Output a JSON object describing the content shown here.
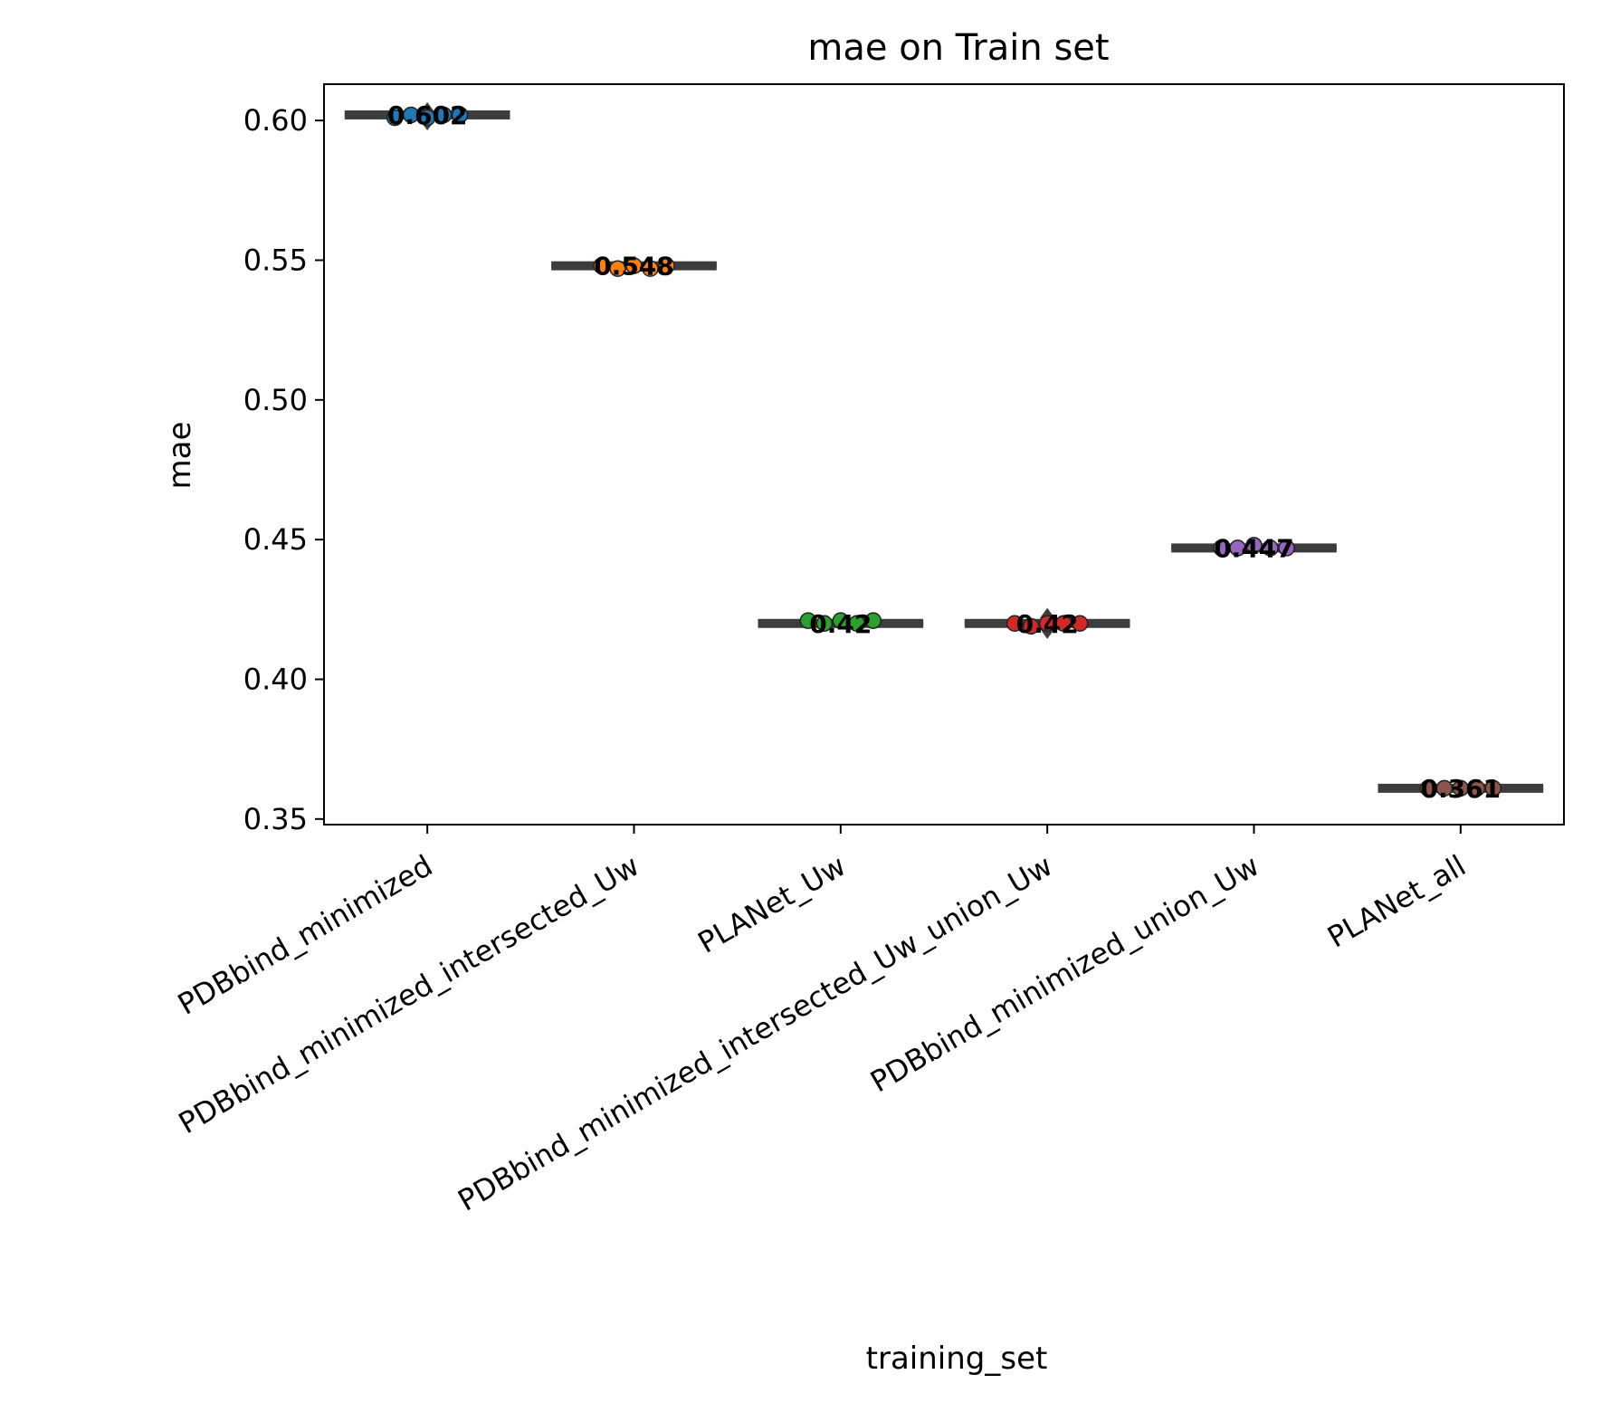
{
  "chart_data": {
    "type": "box",
    "title": "mae on Train set",
    "xlabel": "training_set",
    "ylabel": "mae",
    "ylim": [
      0.348,
      0.613
    ],
    "yticks": [
      0.35,
      0.4,
      0.45,
      0.5,
      0.55,
      0.6
    ],
    "ytick_labels": [
      "0.35",
      "0.40",
      "0.45",
      "0.50",
      "0.55",
      "0.60"
    ],
    "categories": [
      "PDBbind_minimized",
      "PDBbind_minimized_intersected_Uw",
      "PLANet_Uw",
      "PDBbind_minimized_intersected_Uw_union_Uw",
      "PDBbind_minimized_union_Uw",
      "PLANet_all"
    ],
    "medians": [
      0.602,
      0.548,
      0.42,
      0.42,
      0.447,
      0.361
    ],
    "median_labels": [
      "0.602",
      "0.548",
      "0.42",
      "0.42",
      "0.447",
      "0.361"
    ],
    "points": [
      [
        0.601,
        0.602,
        0.601,
        0.602,
        0.602
      ],
      [
        0.548,
        0.547,
        0.548,
        0.547,
        0.548
      ],
      [
        0.421,
        0.42,
        0.421,
        0.42,
        0.421
      ],
      [
        0.42,
        0.419,
        0.42,
        0.42,
        0.42
      ],
      [
        0.447,
        0.447,
        0.448,
        0.447,
        0.447
      ],
      [
        0.361,
        0.361,
        0.361,
        0.361,
        0.361
      ]
    ],
    "outliers": [
      [
        0.603,
        0.6
      ],
      [],
      [],
      [
        0.422,
        0.418
      ],
      [],
      []
    ],
    "colors": [
      "#1f77b4",
      "#ff7f0e",
      "#2ca02c",
      "#d62728",
      "#9467bd",
      "#8c564b"
    ],
    "box_color": "#3d3d3d",
    "grid": false,
    "legend": "none"
  }
}
